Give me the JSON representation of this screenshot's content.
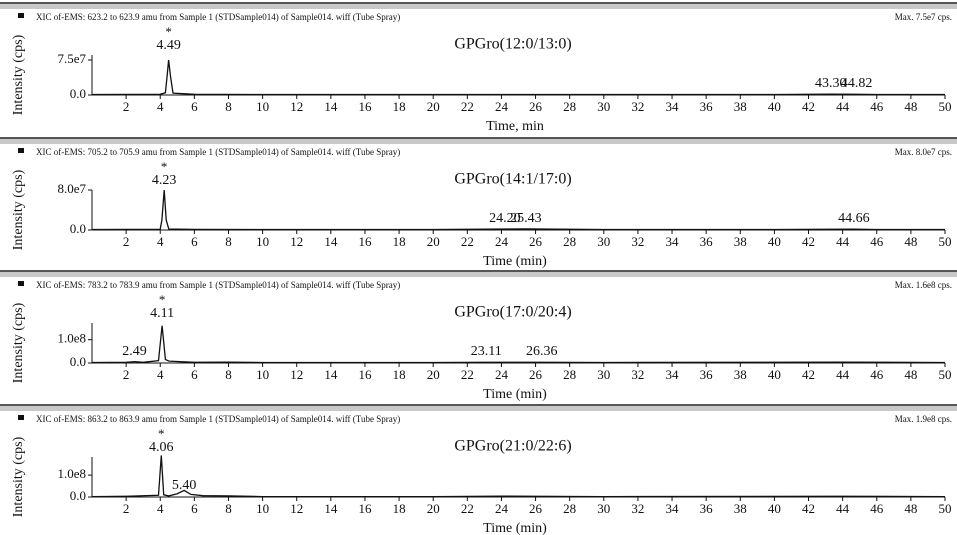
{
  "chart_data": [
    {
      "type": "line",
      "header": "XIC of-EMS: 623.2 to 623.9 amu from Sample 1 (STDSample014) of Sample014. wiff (Tube Spray)",
      "max_label": "Max. 7.5e7 cps.",
      "title": "GPGro(12:0/13:0)",
      "y_label": "Intensity (cps)",
      "x_label": "Time, min",
      "xlim": [
        0,
        50
      ],
      "xticks": [
        2,
        4,
        6,
        8,
        10,
        12,
        14,
        16,
        18,
        20,
        22,
        24,
        26,
        28,
        30,
        32,
        34,
        36,
        38,
        40,
        42,
        44,
        46,
        48,
        50
      ],
      "ylim": [
        0,
        150000000
      ],
      "yticks": [
        {
          "value": 0,
          "label": "0.0"
        },
        {
          "value": 75000000,
          "label": "7.5e7"
        }
      ],
      "series": [
        {
          "color": "#111111",
          "x": [
            0,
            2,
            4,
            4.3,
            4.4,
            4.49,
            4.6,
            4.75,
            6,
            10,
            20,
            30,
            40,
            43.3,
            44.82,
            46,
            50
          ],
          "values": [
            1000000,
            1200000,
            1500000,
            5000000,
            40000000,
            75000000,
            40000000,
            4000000,
            1500000,
            1000000,
            1000000,
            1000000,
            1000000,
            1800000,
            1600000,
            1000000,
            1000000
          ]
        }
      ],
      "peaks": [
        {
          "value": 4.49,
          "label": "4.49",
          "marker": "*"
        },
        {
          "value": 43.3,
          "label": "43.30"
        },
        {
          "value": 44.82,
          "label": "44.82"
        }
      ]
    },
    {
      "type": "line",
      "header": "XIC of-EMS: 705.2 to 705.9 amu from Sample 1 (STDSample014) of Sample014. wiff (Tube Spray)",
      "max_label": "Max. 8.0e7 cps.",
      "title": "GPGro(14:1/17:0)",
      "y_label": "Intensity (cps)",
      "x_label": "Time (min)",
      "xlim": [
        0,
        50
      ],
      "xticks": [
        2,
        4,
        6,
        8,
        10,
        12,
        14,
        16,
        18,
        20,
        22,
        24,
        26,
        28,
        30,
        32,
        34,
        36,
        38,
        40,
        42,
        44,
        46,
        48,
        50
      ],
      "ylim": [
        0,
        140000000
      ],
      "yticks": [
        {
          "value": 0,
          "label": "0.0"
        },
        {
          "value": 80000000,
          "label": "8.0e7"
        }
      ],
      "series": [
        {
          "color": "#111111",
          "x": [
            0,
            2,
            4,
            4.1,
            4.23,
            4.35,
            4.5,
            6,
            10,
            20,
            24.2,
            25.43,
            30,
            40,
            44.66,
            46,
            50
          ],
          "values": [
            1000000,
            1200000,
            1500000,
            20000000,
            80000000,
            20000000,
            2000000,
            1200000,
            1000000,
            1000000,
            2000000,
            2200000,
            1000000,
            1000000,
            1800000,
            1000000,
            1000000
          ]
        }
      ],
      "peaks": [
        {
          "value": 4.23,
          "label": "4.23",
          "marker": "*"
        },
        {
          "value": 24.2,
          "label": "24.20"
        },
        {
          "value": 25.43,
          "label": "25.43"
        },
        {
          "value": 44.66,
          "label": "44.66"
        }
      ]
    },
    {
      "type": "line",
      "header": "XIC of-EMS: 783.2 to 783.9 amu from Sample 1 (STDSample014) of Sample014. wiff (Tube Spray)",
      "max_label": "Max. 1.6e8 cps.",
      "title": "GPGro(17:0/20:4)",
      "y_label": "Intensity (cps)",
      "x_label": "Time (min)",
      "xlim": [
        0,
        50
      ],
      "xticks": [
        2,
        4,
        6,
        8,
        10,
        12,
        14,
        16,
        18,
        20,
        22,
        24,
        26,
        28,
        30,
        32,
        34,
        36,
        38,
        40,
        42,
        44,
        46,
        48,
        50
      ],
      "ylim": [
        0,
        300000000
      ],
      "yticks": [
        {
          "value": 0,
          "label": "0.0"
        },
        {
          "value": 100000000,
          "label": "1.0e8"
        }
      ],
      "series": [
        {
          "color": "#111111",
          "x": [
            0,
            2,
            2.49,
            3,
            3.9,
            4.11,
            4.3,
            4.5,
            6,
            8,
            10,
            20,
            23.11,
            26.36,
            30,
            44,
            50
          ],
          "values": [
            2000000,
            3000000,
            6000000,
            3000000,
            10000000,
            160000000,
            15000000,
            8000000,
            3000000,
            4000000,
            2000000,
            2000000,
            3000000,
            3000000,
            2000000,
            4000000,
            2000000
          ]
        }
      ],
      "peaks": [
        {
          "value": 4.11,
          "label": "4.11",
          "marker": "*"
        },
        {
          "value": 2.49,
          "label": "2.49"
        },
        {
          "value": 23.11,
          "label": "23.11"
        },
        {
          "value": 26.36,
          "label": "26.36"
        }
      ]
    },
    {
      "type": "line",
      "header": "XIC of-EMS: 863.2 to 863.9 amu from Sample 1 (STDSample014) of Sample014. wiff (Tube Spray)",
      "max_label": "Max. 1.9e8 cps.",
      "title": "GPGro(21:0/22:6)",
      "y_label": "Intensity (cps)",
      "x_label": "Time (min)",
      "xlim": [
        0,
        50
      ],
      "xticks": [
        2,
        4,
        6,
        8,
        10,
        12,
        14,
        16,
        18,
        20,
        22,
        24,
        26,
        28,
        30,
        32,
        34,
        36,
        38,
        40,
        42,
        44,
        46,
        48,
        50
      ],
      "ylim": [
        0,
        320000000
      ],
      "yticks": [
        {
          "value": 0,
          "label": "0.0"
        },
        {
          "value": 100000000,
          "label": "1.0e8"
        }
      ],
      "series": [
        {
          "color": "#111111",
          "x": [
            0,
            2,
            3.9,
            4.06,
            4.2,
            4.5,
            5,
            5.4,
            5.8,
            6.5,
            8,
            10,
            20,
            24,
            30,
            44,
            50
          ],
          "values": [
            2000000,
            3000000,
            8000000,
            190000000,
            10000000,
            5000000,
            15000000,
            30000000,
            12000000,
            6000000,
            5000000,
            2000000,
            2000000,
            4000000,
            2000000,
            3000000,
            2000000
          ]
        }
      ],
      "peaks": [
        {
          "value": 4.06,
          "label": "4.06",
          "marker": "*"
        },
        {
          "value": 5.4,
          "label": "5.40"
        }
      ]
    }
  ]
}
